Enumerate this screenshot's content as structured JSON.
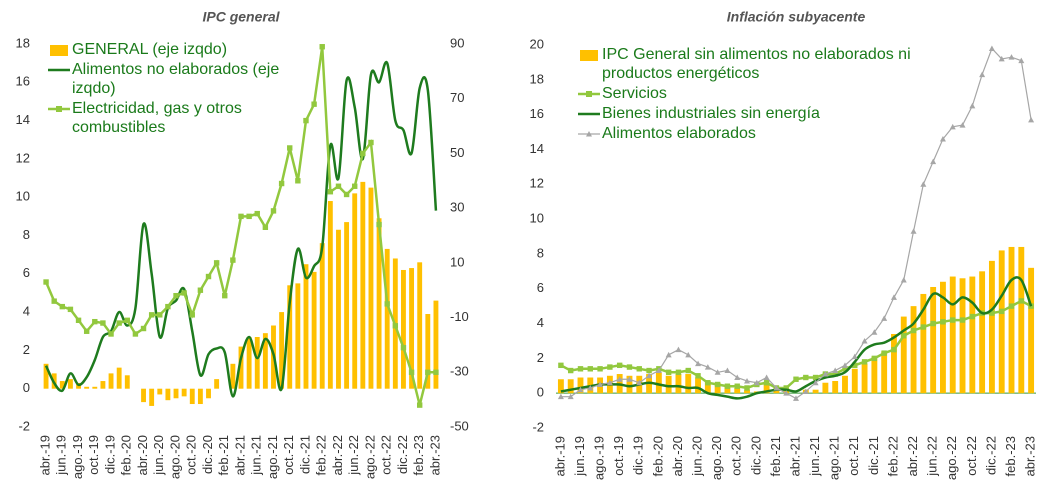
{
  "chart_data": [
    {
      "type": "bar",
      "title": "IPC general",
      "legend": "upper left",
      "categories": [
        "abr.-19",
        null,
        "jun.-19",
        null,
        "ago.-19",
        null,
        "oct.-19",
        null,
        "dic.-19",
        null,
        "feb.-20",
        null,
        "abr.-20",
        null,
        "jun.-20",
        null,
        "ago.-20",
        null,
        "oct.-20",
        null,
        "dic.-20",
        null,
        "feb.-21",
        null,
        "abr.-21",
        null,
        "jun.-21",
        null,
        "ago.-21",
        null,
        "oct.-21",
        null,
        "dic.-21",
        null,
        "feb.-22",
        null,
        "abr.-22",
        null,
        "jun.-22",
        null,
        "ago.-22",
        null,
        "oct.-22",
        null,
        "dic.-22",
        null,
        "feb.-23",
        null,
        "abr.-23"
      ],
      "ylim": [
        -2,
        18
      ],
      "yticks": [
        -2,
        0,
        2,
        4,
        6,
        8,
        10,
        12,
        14,
        16,
        18
      ],
      "y2lim": [
        -50,
        90
      ],
      "y2ticks": [
        -50,
        -30,
        -10,
        10,
        30,
        50,
        70,
        90
      ],
      "series": [
        {
          "name": "GENERAL (eje izqdo)",
          "type": "bar",
          "color": "#ffc000",
          "values": [
            1.3,
            0.8,
            0.4,
            0.5,
            0.3,
            0.1,
            0.1,
            0.4,
            0.8,
            1.1,
            0.7,
            0.0,
            -0.7,
            -0.9,
            -0.3,
            -0.6,
            -0.5,
            -0.4,
            -0.8,
            -0.8,
            -0.5,
            0.5,
            0.0,
            1.3,
            2.2,
            2.7,
            2.7,
            2.9,
            3.3,
            4.0,
            5.4,
            5.5,
            6.5,
            6.1,
            7.6,
            9.8,
            8.3,
            8.7,
            10.2,
            10.8,
            10.5,
            8.9,
            7.3,
            6.8,
            6.2,
            6.3,
            6.6,
            3.9,
            4.6
          ]
        },
        {
          "name": "Alimentos no elaborados (eje izqdo)",
          "type": "line",
          "color": "#1e7b1e",
          "values": [
            1.2,
            0.3,
            -0.1,
            0.8,
            0.2,
            0.6,
            1.5,
            2.7,
            3.0,
            4.0,
            3.3,
            4.2,
            8.6,
            6.0,
            2.7,
            4.2,
            4.6,
            5.2,
            3.0,
            0.7,
            1.8,
            2.1,
            1.9,
            -0.4,
            1.6,
            2.7,
            1.6,
            2.6,
            1.8,
            0.0,
            4.5,
            7.3,
            5.8,
            6.4,
            7.4,
            12.7,
            11.0,
            16.1,
            14.7,
            12.0,
            16.4,
            16.0,
            17.0,
            14.0,
            13.5,
            12.3,
            15.7,
            15.6,
            9.3
          ]
        },
        {
          "name": "Electricidad, gas y otros combustibles",
          "type": "line",
          "marker": "square",
          "axis": "y2",
          "color": "#92c83e",
          "values": [
            3,
            -4,
            -6,
            -7,
            -11,
            -15,
            -11.5,
            -12,
            -16,
            -12,
            -11,
            -16,
            -14,
            -9,
            -9,
            -6,
            -2,
            -1,
            -9,
            0,
            5,
            10,
            -2,
            11,
            27,
            27,
            28,
            23,
            29,
            39,
            52,
            40,
            62,
            68,
            89,
            36,
            38,
            35,
            38,
            50,
            54,
            24,
            -5,
            -13,
            -21,
            -30,
            -42,
            -30,
            -30
          ]
        }
      ]
    },
    {
      "type": "bar",
      "title": "Inflación subyacente",
      "legend": "upper left",
      "categories": [
        "abr.-19",
        null,
        "jun.-19",
        null,
        "ago.-19",
        null,
        "oct.-19",
        null,
        "dic.-19",
        null,
        "feb.-20",
        null,
        "abr.-20",
        null,
        "jun.-20",
        null,
        "ago.-20",
        null,
        "oct.-20",
        null,
        "dic.-20",
        null,
        "feb.-21",
        null,
        "abr.-21",
        null,
        "jun.-21",
        null,
        "ago.-21",
        null,
        "oct.-21",
        null,
        "dic.-21",
        null,
        "feb.-22",
        null,
        "abr.-22",
        null,
        "jun.-22",
        null,
        "ago.-22",
        null,
        "oct.-22",
        null,
        "dic.-22",
        null,
        "feb.-23",
        null,
        "abr.-23"
      ],
      "ylim": [
        -2,
        20
      ],
      "yticks": [
        -2,
        0,
        2,
        4,
        6,
        8,
        10,
        12,
        14,
        16,
        18,
        20
      ],
      "series": [
        {
          "name": "IPC General sin alimentos no elaborados ni productos energéticos",
          "type": "bar",
          "color": "#ffc000",
          "values": [
            0.8,
            0.8,
            0.9,
            0.9,
            0.9,
            1.0,
            1.1,
            1.0,
            1.0,
            1.1,
            1.2,
            1.0,
            1.1,
            1.1,
            0.9,
            0.7,
            0.6,
            0.4,
            0.3,
            0.2,
            0.1,
            0.6,
            0.3,
            0.3,
            0.0,
            0.2,
            0.2,
            0.6,
            0.7,
            1.0,
            1.4,
            1.7,
            2.1,
            2.4,
            3.4,
            4.4,
            5.0,
            5.7,
            6.1,
            6.4,
            6.7,
            6.6,
            6.7,
            7.0,
            7.6,
            8.2,
            8.4,
            8.4,
            7.2
          ]
        },
        {
          "name": "Servicios",
          "type": "line",
          "marker": "square",
          "color": "#92c83e",
          "values": [
            1.6,
            1.3,
            1.4,
            1.4,
            1.4,
            1.5,
            1.6,
            1.5,
            1.4,
            1.3,
            1.4,
            1.2,
            1.2,
            1.3,
            1.0,
            0.6,
            0.5,
            0.4,
            0.4,
            0.3,
            0.5,
            0.6,
            0.3,
            0.3,
            0.8,
            0.9,
            0.9,
            1.1,
            1.1,
            1.4,
            1.6,
            1.8,
            2.0,
            2.3,
            2.5,
            3.3,
            3.6,
            3.8,
            4.0,
            4.1,
            4.2,
            4.2,
            4.4,
            4.6,
            4.6,
            4.7,
            5.0,
            5.3,
            5.0
          ]
        },
        {
          "name": "Bienes industriales sin energía",
          "type": "line",
          "color": "#1e7b1e",
          "values": [
            0.1,
            0.2,
            0.3,
            0.4,
            0.5,
            0.5,
            0.5,
            0.4,
            0.5,
            0.6,
            0.5,
            0.4,
            0.4,
            0.3,
            0.3,
            0.0,
            -0.1,
            -0.2,
            -0.3,
            -0.2,
            0.0,
            0.1,
            0.2,
            0.2,
            0.1,
            0.4,
            0.7,
            0.9,
            1.0,
            1.2,
            1.8,
            2.5,
            2.8,
            2.9,
            3.2,
            3.6,
            4.0,
            4.8,
            5.7,
            5.5,
            5.1,
            5.5,
            5.2,
            4.6,
            4.8,
            5.6,
            6.5,
            6.5,
            5.0
          ]
        },
        {
          "name": "Alimentos elaborados",
          "type": "line",
          "marker": "triangle",
          "color": "#a6a6a6",
          "values": [
            -0.2,
            -0.2,
            0.2,
            0.3,
            0.5,
            0.6,
            0.8,
            0.8,
            0.6,
            1.0,
            1.3,
            2.2,
            2.5,
            2.2,
            1.7,
            1.5,
            1.2,
            1.3,
            0.9,
            0.7,
            0.6,
            0.9,
            0.3,
            0.0,
            -0.3,
            0.1,
            0.6,
            1.1,
            1.3,
            1.6,
            2.1,
            3.0,
            3.5,
            4.3,
            5.5,
            6.5,
            9.3,
            12.0,
            13.3,
            14.6,
            15.3,
            15.4,
            16.5,
            18.3,
            19.8,
            19.2,
            19.3,
            19.1,
            15.7
          ]
        }
      ]
    }
  ]
}
